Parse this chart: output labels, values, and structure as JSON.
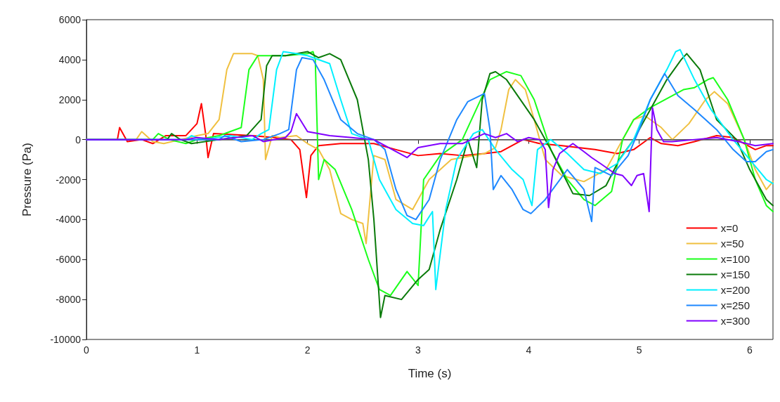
{
  "chart_data": {
    "type": "line",
    "xlabel": "Time (s)",
    "ylabel": "Pressure (Pa)",
    "xlim": [
      0,
      6.21
    ],
    "xticks": [
      0,
      1,
      2,
      3,
      4,
      5,
      6
    ],
    "ylim": [
      -10000,
      6000
    ],
    "yticks": [
      -10000,
      -8000,
      -6000,
      -4000,
      -2000,
      0,
      2000,
      4000,
      6000
    ],
    "grid": false,
    "legend": "bottom right",
    "marker": "none",
    "line_style": "solid",
    "ref_lines": [
      {
        "axis": "y",
        "value": 0,
        "color": "#606060"
      }
    ],
    "series": [
      {
        "name": "x=0",
        "color": "#ff0000",
        "x": [
          0,
          0.28,
          0.3,
          0.37,
          0.5,
          0.6,
          0.72,
          0.9,
          1.0,
          1.04,
          1.08,
          1.1,
          1.15,
          1.5,
          1.7,
          1.85,
          1.93,
          1.99,
          2.03,
          2.1,
          2.3,
          2.6,
          2.8,
          3.0,
          3.2,
          3.4,
          3.6,
          3.75,
          3.85,
          3.95,
          4.1,
          4.3,
          4.6,
          4.8,
          4.95,
          5.05,
          5.1,
          5.2,
          5.35,
          5.5,
          5.7,
          5.85,
          5.95,
          6.05,
          6.15,
          6.21
        ],
        "values": [
          0,
          0,
          600,
          -100,
          0,
          -200,
          200,
          200,
          800,
          1800,
          200,
          -900,
          300,
          200,
          100,
          0,
          -500,
          -2900,
          -800,
          -300,
          -200,
          -200,
          -500,
          -800,
          -700,
          -800,
          -700,
          -600,
          -300,
          0,
          -200,
          -300,
          -500,
          -700,
          -500,
          -100,
          100,
          -200,
          -300,
          -100,
          200,
          100,
          -200,
          -500,
          -300,
          -300
        ]
      },
      {
        "name": "x=50",
        "color": "#f0c040",
        "x": [
          0,
          0.45,
          0.5,
          0.6,
          0.7,
          0.85,
          1.0,
          1.1,
          1.2,
          1.27,
          1.33,
          1.5,
          1.55,
          1.6,
          1.62,
          1.68,
          1.75,
          1.9,
          2.0,
          2.1,
          2.2,
          2.3,
          2.4,
          2.5,
          2.53,
          2.6,
          2.7,
          2.8,
          2.95,
          3.1,
          3.3,
          3.6,
          3.7,
          3.75,
          3.82,
          3.88,
          3.97,
          4.05,
          4.15,
          4.3,
          4.5,
          4.7,
          4.85,
          4.95,
          5.05,
          5.2,
          5.3,
          5.45,
          5.6,
          5.68,
          5.8,
          5.95,
          6.05,
          6.15,
          6.21
        ],
        "values": [
          0,
          0,
          400,
          -100,
          -200,
          0,
          200,
          300,
          1000,
          3500,
          4300,
          4300,
          4200,
          3000,
          -1000,
          200,
          100,
          200,
          -200,
          -500,
          -1500,
          -3700,
          -4000,
          -4200,
          -5200,
          -800,
          -1000,
          -3000,
          -3500,
          -2000,
          -1000,
          -700,
          -400,
          500,
          2500,
          3000,
          2500,
          1000,
          -1000,
          -1800,
          -2100,
          -1500,
          0,
          1000,
          1200,
          600,
          0,
          800,
          2000,
          2400,
          1800,
          0,
          -1500,
          -2500,
          -2100
        ]
      },
      {
        "name": "x=100",
        "color": "#1aff1a",
        "x": [
          0,
          0.6,
          0.65,
          0.75,
          0.9,
          1.0,
          1.2,
          1.4,
          1.47,
          1.55,
          1.8,
          2.0,
          2.05,
          2.07,
          2.1,
          2.15,
          2.25,
          2.4,
          2.55,
          2.65,
          2.75,
          2.9,
          3.0,
          3.05,
          3.2,
          3.4,
          3.55,
          3.65,
          3.8,
          3.93,
          4.05,
          4.2,
          4.35,
          4.5,
          4.6,
          4.75,
          4.85,
          4.95,
          5.1,
          5.4,
          5.5,
          5.62,
          5.67,
          5.8,
          5.95,
          6.05,
          6.15,
          6.21
        ],
        "values": [
          0,
          0,
          300,
          0,
          -200,
          0,
          200,
          600,
          3500,
          4200,
          4200,
          4300,
          4400,
          4000,
          -2000,
          -1000,
          -1500,
          -3500,
          -6000,
          -7500,
          -7800,
          -6600,
          -7300,
          -2000,
          -800,
          0,
          1800,
          3000,
          3400,
          3200,
          2000,
          -500,
          -2000,
          -3000,
          -3300,
          -2600,
          0,
          1000,
          1600,
          2500,
          2600,
          3000,
          3100,
          2000,
          0,
          -2000,
          -3300,
          -3600
        ]
      },
      {
        "name": "x=150",
        "color": "#0a7a0a",
        "x": [
          0,
          0.73,
          0.77,
          0.85,
          0.95,
          1.2,
          1.45,
          1.58,
          1.63,
          1.68,
          1.8,
          2.0,
          2.1,
          2.2,
          2.3,
          2.45,
          2.55,
          2.6,
          2.66,
          2.7,
          2.85,
          3.0,
          3.1,
          3.2,
          3.35,
          3.45,
          3.53,
          3.58,
          3.65,
          3.7,
          3.8,
          3.95,
          4.05,
          4.2,
          4.4,
          4.55,
          4.7,
          4.82,
          4.95,
          5.1,
          5.25,
          5.38,
          5.43,
          5.55,
          5.7,
          5.88,
          6.0,
          6.15,
          6.21
        ],
        "values": [
          0,
          0,
          300,
          0,
          -200,
          0,
          200,
          1000,
          3700,
          4200,
          4200,
          4400,
          4100,
          4300,
          4000,
          2000,
          -1000,
          -4000,
          -8900,
          -7800,
          -8000,
          -7000,
          -6500,
          -4500,
          -2000,
          0,
          -1400,
          2000,
          3300,
          3400,
          3000,
          1800,
          1000,
          -500,
          -2700,
          -2800,
          -2300,
          -1000,
          0,
          1500,
          3000,
          4000,
          4300,
          3500,
          1000,
          0,
          -1500,
          -3000,
          -3300
        ]
      },
      {
        "name": "x=200",
        "color": "#00f0ff",
        "x": [
          0,
          0.9,
          0.95,
          1.05,
          1.3,
          1.5,
          1.58,
          1.65,
          1.72,
          1.78,
          1.9,
          2.0,
          2.2,
          2.3,
          2.4,
          2.55,
          2.65,
          2.8,
          2.95,
          3.05,
          3.13,
          3.16,
          3.25,
          3.35,
          3.5,
          3.58,
          3.7,
          3.85,
          3.95,
          4.03,
          4.08,
          4.2,
          4.35,
          4.5,
          4.65,
          4.8,
          4.95,
          5.1,
          5.25,
          5.33,
          5.37,
          5.5,
          5.65,
          5.85,
          6.0,
          6.15,
          6.21
        ],
        "values": [
          0,
          0,
          200,
          0,
          200,
          0,
          300,
          500,
          3500,
          4400,
          4300,
          4200,
          3800,
          2000,
          300,
          0,
          -2000,
          -3500,
          -4200,
          -4300,
          -3600,
          -7500,
          -3500,
          -1000,
          300,
          500,
          -500,
          -1500,
          -2000,
          -3300,
          -500,
          0,
          -700,
          -1500,
          -1700,
          -1200,
          0,
          2000,
          3500,
          4400,
          4500,
          3000,
          1500,
          0,
          -1000,
          -2000,
          -2200
        ]
      },
      {
        "name": "x=250",
        "color": "#1e88ff",
        "x": [
          0,
          1.2,
          1.25,
          1.4,
          1.6,
          1.75,
          1.83,
          1.9,
          1.95,
          2.05,
          2.15,
          2.3,
          2.45,
          2.6,
          2.7,
          2.8,
          2.9,
          2.98,
          3.1,
          3.2,
          3.35,
          3.45,
          3.6,
          3.65,
          3.68,
          3.75,
          3.85,
          3.95,
          4.02,
          4.15,
          4.35,
          4.5,
          4.57,
          4.6,
          4.75,
          4.9,
          5.0,
          5.1,
          5.2,
          5.23,
          5.35,
          5.5,
          5.7,
          5.85,
          5.97,
          6.05,
          6.15,
          6.21
        ],
        "values": [
          0,
          0,
          200,
          -100,
          0,
          300,
          500,
          3500,
          4100,
          4000,
          3000,
          1000,
          300,
          0,
          -500,
          -2500,
          -3800,
          -4000,
          -3000,
          -1000,
          1000,
          1900,
          2300,
          500,
          -2500,
          -1800,
          -2500,
          -3500,
          -3700,
          -3000,
          -1500,
          -2500,
          -4100,
          -1400,
          -1800,
          -800,
          500,
          2000,
          3000,
          3300,
          2200,
          1500,
          500,
          -500,
          -1100,
          -1100,
          -600,
          -500
        ]
      },
      {
        "name": "x=300",
        "color": "#8000ff",
        "x": [
          0,
          0.9,
          1.0,
          1.2,
          1.5,
          1.6,
          1.8,
          1.85,
          1.9,
          2.0,
          2.2,
          2.4,
          2.6,
          2.8,
          2.9,
          3.0,
          3.2,
          3.4,
          3.6,
          3.7,
          3.8,
          3.9,
          4.0,
          4.1,
          4.15,
          4.18,
          4.22,
          4.28,
          4.35,
          4.4,
          4.5,
          4.57,
          4.65,
          4.78,
          4.85,
          4.93,
          4.98,
          5.04,
          5.09,
          5.12,
          5.16,
          5.22,
          5.3,
          5.5,
          5.7,
          5.9,
          6.05,
          6.21
        ],
        "values": [
          0,
          0,
          100,
          0,
          200,
          -100,
          100,
          400,
          1300,
          400,
          200,
          100,
          0,
          -600,
          -900,
          -400,
          -200,
          -200,
          300,
          100,
          300,
          -100,
          100,
          0,
          -500,
          -3400,
          -1500,
          -700,
          -400,
          -200,
          -600,
          -900,
          -1200,
          -1700,
          -1800,
          -2300,
          -1800,
          -1700,
          -3600,
          1600,
          500,
          -100,
          -100,
          0,
          100,
          -100,
          -300,
          -200
        ]
      }
    ]
  }
}
